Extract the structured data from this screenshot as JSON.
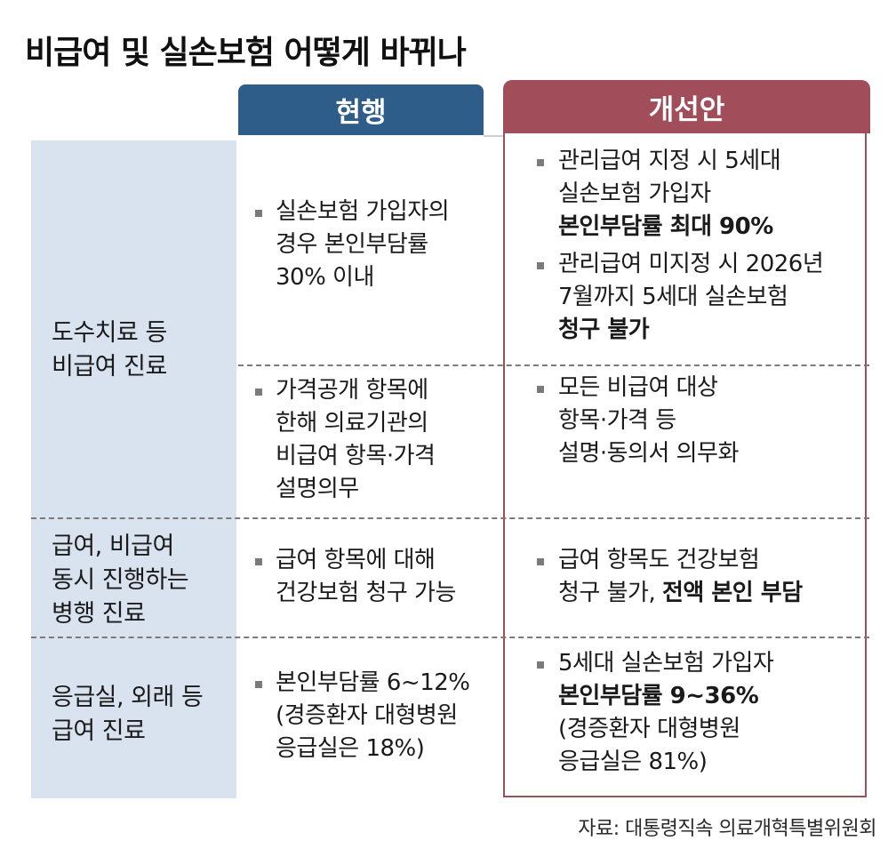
{
  "title": "비급여 및 실손보험 어떻게 바뀌나",
  "headers": {
    "current": "현행",
    "improved": "개선안"
  },
  "rows": [
    {
      "label": [
        "도수치료 등",
        "비급여 진료"
      ],
      "current": [
        {
          "lines": [
            "실손보험 가입자의",
            "경우 본인부담률",
            "30% 이내"
          ]
        },
        {
          "lines": [
            "가격공개 항목에",
            "한해 의료기관의",
            "비급여 항목·가격",
            "설명의무"
          ]
        }
      ],
      "improved": [
        {
          "lines": [
            "관리급여 지정 시 5세대",
            "실손보험 가입자"
          ],
          "bold": "본인부담률 최대 90%"
        },
        {
          "lines": [
            "관리급여 미지정 시 2026년",
            "7월까지 5세대 실손보험"
          ],
          "bold": "청구 불가"
        },
        {
          "lines": [
            "모든 비급여 대상",
            "항목·가격 등",
            "설명·동의서 의무화"
          ]
        }
      ]
    },
    {
      "label": [
        "급여, 비급여",
        "동시 진행하는",
        "병행 진료"
      ],
      "current": [
        {
          "lines": [
            "급여 항목에 대해",
            "건강보험 청구 가능"
          ]
        }
      ],
      "improved": [
        {
          "lines": [
            "급여 항목도 건강보험"
          ],
          "last_plain": "청구 불가, ",
          "last_bold": "전액 본인 부담"
        }
      ]
    },
    {
      "label": [
        "응급실, 외래 등",
        "급여 진료"
      ],
      "current": [
        {
          "lines": [
            "본인부담률 6~12%",
            "(경증환자 대형병원",
            "응급실은 18%)"
          ]
        }
      ],
      "improved": [
        {
          "first": "5세대 실손보험 가입자",
          "bold": "본인부담률 9~36%",
          "lines": [
            "(경증환자 대형병원",
            "응급실은 81%)"
          ]
        }
      ]
    }
  ],
  "source": "자료: 대통령직속 의료개혁특별위원회"
}
